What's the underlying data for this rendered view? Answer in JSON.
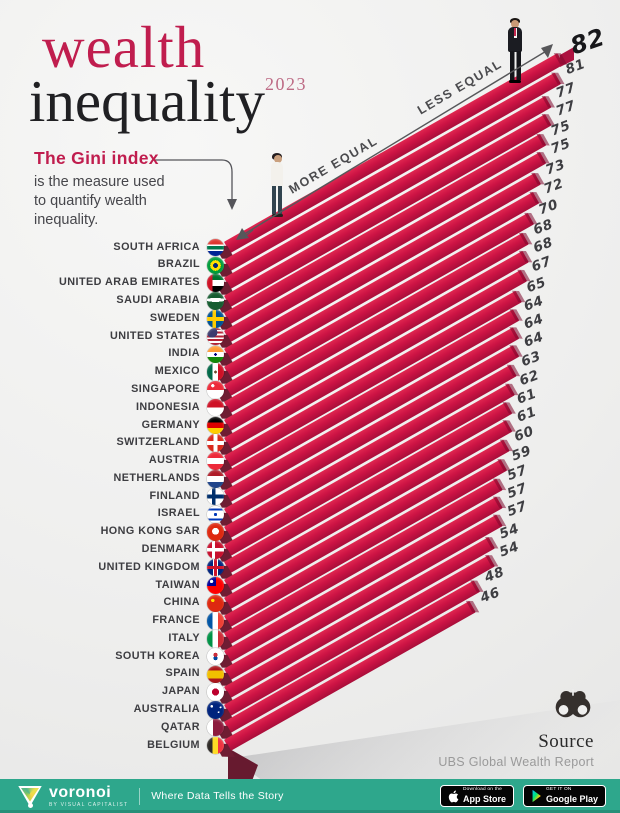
{
  "header": {
    "title_line1": "wealth",
    "title_line2": "inequality",
    "year": "2023"
  },
  "intro": {
    "heading": "The Gini index",
    "line1": "is the measure used",
    "line2": "to quantify wealth",
    "line3": "inequality."
  },
  "axis": {
    "more": "MORE EQUAL",
    "less": "LESS EQUAL"
  },
  "chart_data": {
    "type": "bar",
    "title": "wealth inequality 2023",
    "subtitle": "The Gini index is the measure used to quantify wealth inequality.",
    "orientation": "horizontal-isometric",
    "sort": "descending",
    "value_range_shown": [
      46,
      82
    ],
    "bar_color": "#cc1344",
    "bar_side_color": "#6f1d33",
    "categories": [
      "SOUTH AFRICA",
      "BRAZIL",
      "UNITED ARAB EMIRATES",
      "SAUDI ARABIA",
      "SWEDEN",
      "UNITED STATES",
      "INDIA",
      "MEXICO",
      "SINGAPORE",
      "INDONESIA",
      "GERMANY",
      "SWITZERLAND",
      "AUSTRIA",
      "NETHERLANDS",
      "FINLAND",
      "ISRAEL",
      "HONG KONG SAR",
      "DENMARK",
      "UNITED KINGDOM",
      "TAIWAN",
      "CHINA",
      "FRANCE",
      "ITALY",
      "SOUTH KOREA",
      "SPAIN",
      "JAPAN",
      "AUSTRALIA",
      "QATAR",
      "BELGIUM"
    ],
    "values": [
      82,
      81,
      77,
      77,
      75,
      75,
      73,
      72,
      70,
      68,
      68,
      67,
      65,
      64,
      64,
      64,
      63,
      62,
      61,
      61,
      60,
      59,
      57,
      57,
      57,
      54,
      54,
      48,
      46
    ]
  },
  "flags": {
    "styles": [
      "background:linear-gradient(180deg,#de3831 0 32%,#ffffff 32% 42%,#007a4d 42% 62%,#ffffff 62% 72%,#002395 72%)",
      "background:radial-gradient(circle at 50% 50%,#002776 0 20%,#ffdf00 20% 44%,#009c3b 44%)",
      "background:linear-gradient(90deg,#ce1126 0 32%,rgba(206,17,38,0) 32%),linear-gradient(180deg,#00732f 0 33%,#ffffff 33% 66%,#000000 66%)",
      "background:radial-gradient(ellipse 58% 11% at 50% 44%,#ffffff 0 99%,rgba(255,255,255,0) 100%),linear-gradient(#165d31,#165d31)",
      "background:linear-gradient(90deg,rgba(0,0,0,0) 0 32%,#fecc02 32% 52%,rgba(0,0,0,0) 52%),linear-gradient(180deg,#005293 0 40%,#fecc02 40% 60%,#005293 60%)",
      "background:radial-gradient(circle at 30% 26%,#3c3b6e 0 30%,rgba(60,59,110,0) 31%),repeating-linear-gradient(180deg,#b22234 0 11%,#ffffff 11% 22%)",
      "background:radial-gradient(circle at 50% 50%,#000080 0 11%,rgba(0,0,128,0) 12%),linear-gradient(180deg,#ff9933 0 34%,#ffffff 34% 66%,#138808 66%)",
      "background:radial-gradient(circle at 50% 50%,#6b4a2b 0 11%,rgba(107,74,43,0) 12%),linear-gradient(90deg,#006847 0 33%,#ffffff 33% 66%,#ce1126 66%)",
      "background:radial-gradient(circle at 34% 26%,#ffffff 0 9%,rgba(255,255,255,0) 10%),linear-gradient(180deg,#ed2939 0 50%,#ffffff 50%)",
      "background:linear-gradient(180deg,#ce1126 0 50%,#ffffff 50%)",
      "background:linear-gradient(180deg,#000000 0 33%,#dd0000 33% 66%,#ffce00 66%)",
      "background:linear-gradient(90deg,rgba(0,0,0,0) 0 38%,#ffffff 38% 62%,rgba(0,0,0,0) 62%),linear-gradient(180deg,#da291c 0 38%,#ffffff 38% 62%,#da291c 62%)",
      "background:linear-gradient(180deg,#ed2939 0 33%,#ffffff 33% 66%,#ed2939 66%)",
      "background:linear-gradient(180deg,#ae1c28 0 33%,#ffffff 33% 66%,#21468b 66%)",
      "background:linear-gradient(90deg,rgba(0,0,0,0) 0 28%,#002f6c 28% 50%,rgba(0,0,0,0) 50%),linear-gradient(180deg,#ffffff 0 38%,#002f6c 38% 62%,#ffffff 62%)",
      "background:radial-gradient(circle at 50% 50%,#0038b8 0 13%,rgba(0,56,184,0) 14%),linear-gradient(180deg,#ffffff 0 14%,#0038b8 14% 26%,#ffffff 26% 74%,#0038b8 74% 86%,#ffffff 86%)",
      "background:radial-gradient(circle at 50% 46%,#ffffff 0 26%,rgba(255,255,255,0) 27%),linear-gradient(#de2910,#de2910)",
      "background:linear-gradient(90deg,rgba(0,0,0,0) 0 30%,#ffffff 30% 48%,rgba(0,0,0,0) 48%),linear-gradient(180deg,#c8102e 0 40%,#ffffff 40% 58%,#c8102e 58%)",
      "background:linear-gradient(0deg,rgba(0,0,0,0) 0 42%,#cf142b 42% 58%,rgba(0,0,0,0) 58%),linear-gradient(90deg,#00247d 0 34%,#ffffff 34% 42%,#cf142b 42% 58%,#ffffff 58% 66%,#00247d 66%)",
      "background:radial-gradient(circle at 27% 26%,#ffffff 0 9%,rgba(255,255,255,0) 10%),conic-gradient(from 270deg at 54% 52%,#000095 0 90deg,#fe0000 90deg 360deg)",
      "background:radial-gradient(circle at 34% 32%,#ffde00 0 10%,rgba(255,222,0,0) 11%),linear-gradient(#de2910,#de2910)",
      "background:linear-gradient(90deg,#0055a4 0 33%,#ffffff 33% 66%,#ef4135 66%)",
      "background:linear-gradient(90deg,#009246 0 33%,#ffffff 33% 66%,#ce2b37 66%)",
      "background:radial-gradient(circle at 50% 40%,#cd2e3a 0 15%,rgba(205,46,58,0) 16%),radial-gradient(circle at 50% 60%,#0047a0 0 15%,rgba(0,71,160,0) 16%),linear-gradient(#ffffff,#ffffff)",
      "background:linear-gradient(180deg,#aa151b 0 27%,#f1bf00 27% 73%,#aa151b 73%)",
      "background:radial-gradient(circle at 50% 50%,#bc002d 0 28%,rgba(188,0,45,0) 29%),linear-gradient(#ffffff,#ffffff)",
      "background:radial-gradient(circle at 28% 30%,#ffffff 0 7%,rgba(255,255,255,0) 8%),radial-gradient(circle at 68% 62%,#ffffff 0 5%,rgba(255,255,255,0) 6%),radial-gradient(circle at 80% 35%,#ffffff 0 5%,rgba(255,255,255,0) 6%),linear-gradient(#00247d,#00247d)",
      "background:linear-gradient(90deg,#ffffff 0 34%,#8d1b3d 34%)",
      "background:linear-gradient(90deg,#2d2926 0 33%,#fdda25 33% 66%,#ef3340 66%)"
    ]
  },
  "source": {
    "label": "Source",
    "name": "UBS Global Wealth Report"
  },
  "footer": {
    "brand": "voronoi",
    "brand_sub": "BY VISUAL CAPITALIST",
    "tagline": "Where Data Tells the Story",
    "appstore_line1": "Download on the",
    "appstore_line2": "App Store",
    "googleplay_line1": "GET IT ON",
    "googleplay_line2": "Google Play"
  },
  "colors": {
    "crimson": "#c01d4e",
    "title_dark": "#202023",
    "year_rose": "#bd6b85",
    "footer_green": "#2ea78c",
    "background": "#eeeeed"
  }
}
